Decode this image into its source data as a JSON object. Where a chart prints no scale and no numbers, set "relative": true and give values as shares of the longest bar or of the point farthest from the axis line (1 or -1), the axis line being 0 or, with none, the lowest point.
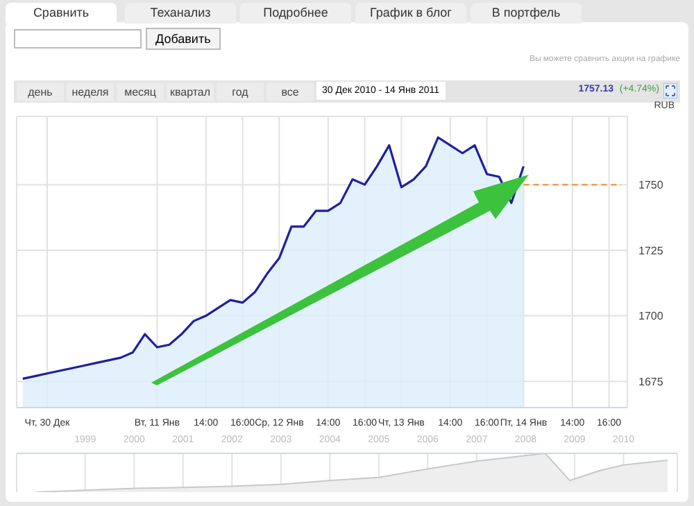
{
  "chart_data": [
    {
      "type": "area",
      "ylabel": "RUB",
      "annotations": [
        "Сравнить",
        "Теханализ",
        "Подробнее",
        "График в блог",
        "В портфель",
        "Добавить",
        "Вы можете сравнить акции на графике",
        "день",
        "неделя",
        "месяц",
        "квартал",
        "год",
        "все",
        "30 Дек 2010 - 14 Янв 2011",
        "1757.13",
        "(+4.74%)"
      ],
      "categories": [
        null,
        null,
        "Чт, 30 Дек",
        null,
        null,
        null,
        null,
        null,
        null,
        null,
        null,
        "Вт, 11 Янв",
        null,
        null,
        null,
        "14:00",
        null,
        null,
        "16:00",
        null,
        null,
        "Ср, 12 Янв",
        null,
        null,
        null,
        "14:00",
        null,
        null,
        "16:00",
        null,
        null,
        "Чт, 13 Янв",
        null,
        null,
        null,
        "14:00",
        null,
        null,
        "16:00",
        null,
        null,
        "Пт, 14 Янв",
        null,
        null,
        null,
        "14:00",
        null,
        null,
        "16:00",
        null
      ],
      "series": [
        {
          "color": "#1f1f9e",
          "values": [
            1676,
            1677,
            1678,
            1679,
            1680,
            1681,
            1682,
            1683,
            1684,
            1686,
            1693,
            1688,
            1689,
            1693,
            1698,
            1700,
            1703,
            1706,
            1705,
            1709,
            1716,
            1722,
            1734,
            1734,
            1740,
            1740,
            1743,
            1752,
            1750,
            1757,
            1765,
            1749,
            1752,
            1757,
            1768,
            1765,
            1762,
            1765,
            1754,
            1753,
            1743,
            1757,
            null,
            null,
            null,
            null,
            null,
            null,
            null,
            null
          ]
        }
      ],
      "ylim": [
        1665,
        1776
      ],
      "yticks": [
        1675,
        1700,
        1725,
        1750
      ],
      "ref_lines": [
        {
          "axis": "y",
          "value": 1750,
          "color": "#f08a24",
          "line_style": "dashed"
        }
      ],
      "grid": true
    },
    {
      "type": "area",
      "relative": true,
      "tick_labels": "x",
      "x": [
        1998,
        1999,
        2000,
        2001,
        2002,
        2003,
        2004,
        2005,
        2006,
        2007,
        2008.4,
        2008.9,
        2009.5,
        2010,
        2010.9
      ],
      "series": [
        {
          "color": "#c8c8c8",
          "values": [
            0,
            0.05,
            0.1,
            0.12,
            0.15,
            0.2,
            0.3,
            0.38,
            0.6,
            0.8,
            1,
            0.3,
            0.55,
            0.7,
            0.82
          ]
        }
      ],
      "xlim": [
        1997.6,
        2011.1
      ],
      "xticks": [
        1999,
        2000,
        2001,
        2002,
        2003,
        2004,
        2005,
        2006,
        2007,
        2008,
        2009,
        2010
      ],
      "grid": "x"
    }
  ]
}
